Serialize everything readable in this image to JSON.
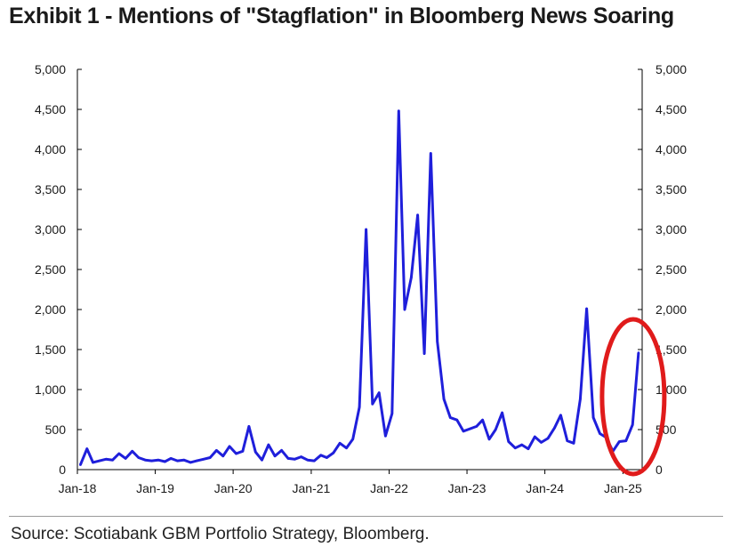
{
  "title": "Exhibit 1 - Mentions of \"Stagflation\" in Bloomberg News Soaring",
  "source": "Source: Scotiabank GBM Portfolio Strategy, Bloomberg.",
  "colors": {
    "series": "#1f1fdb",
    "highlight": "#e01b1b",
    "axis": "#000000"
  },
  "chart_data": {
    "type": "line",
    "title": "Exhibit 1 - Mentions of \"Stagflation\" in Bloomberg News Soaring",
    "xlabel": "",
    "ylabel": "",
    "ylim": [
      0,
      5000
    ],
    "y_ticks": [
      "0",
      "500",
      "1,000",
      "1,500",
      "2,000",
      "2,500",
      "3,000",
      "3,500",
      "4,000",
      "4,500",
      "5,000"
    ],
    "x_tick_labels": [
      "Jan-18",
      "Jan-19",
      "Jan-20",
      "Jan-21",
      "Jan-22",
      "Jan-23",
      "Jan-24",
      "Jan-25"
    ],
    "x_range": [
      "2018-01",
      "2025-04"
    ],
    "secondary_axis": "right (same scale)",
    "grid": false,
    "legend": "none",
    "annotation": "red ellipse around latest spike",
    "series": [
      {
        "x": [
          "2018-01",
          "2018-02",
          "2018-03",
          "2018-04",
          "2018-05",
          "2018-06",
          "2018-07",
          "2018-08",
          "2018-09",
          "2018-10",
          "2018-11",
          "2018-12",
          "2019-01",
          "2019-02",
          "2019-03",
          "2019-04",
          "2019-05",
          "2019-06",
          "2019-07",
          "2019-08",
          "2019-09",
          "2019-10",
          "2019-11",
          "2019-12",
          "2020-01",
          "2020-02",
          "2020-03",
          "2020-04",
          "2020-05",
          "2020-06",
          "2020-07",
          "2020-08",
          "2020-09",
          "2020-10",
          "2020-11",
          "2020-12",
          "2021-01",
          "2021-02",
          "2021-03",
          "2021-04",
          "2021-05",
          "2021-06",
          "2021-07",
          "2021-08",
          "2021-09",
          "2021-10",
          "2021-11",
          "2021-12",
          "2022-01",
          "2022-02",
          "2022-03",
          "2022-04",
          "2022-05",
          "2022-06",
          "2022-07",
          "2022-08",
          "2022-09",
          "2022-10",
          "2022-11",
          "2022-12",
          "2023-01",
          "2023-02",
          "2023-03",
          "2023-04",
          "2023-05",
          "2023-06",
          "2023-07",
          "2023-08",
          "2023-09",
          "2023-10",
          "2023-11",
          "2023-12",
          "2024-01",
          "2024-02",
          "2024-03",
          "2024-04",
          "2024-05",
          "2024-06",
          "2024-07",
          "2024-08",
          "2024-09",
          "2024-10",
          "2024-11",
          "2024-12",
          "2025-01",
          "2025-02",
          "2025-03"
        ],
        "values": [
          60,
          260,
          90,
          110,
          130,
          120,
          200,
          140,
          230,
          150,
          120,
          110,
          120,
          100,
          140,
          110,
          120,
          90,
          110,
          130,
          150,
          240,
          170,
          290,
          200,
          230,
          540,
          220,
          120,
          310,
          170,
          240,
          140,
          130,
          160,
          120,
          110,
          180,
          150,
          210,
          330,
          270,
          380,
          780,
          3000,
          820,
          960,
          420,
          700,
          4480,
          2000,
          2400,
          3180,
          1450,
          3950,
          1600,
          880,
          650,
          620,
          480,
          510,
          540,
          620,
          380,
          500,
          710,
          350,
          270,
          310,
          260,
          410,
          340,
          390,
          520,
          680,
          360,
          330,
          880,
          2010,
          650,
          450,
          400,
          230,
          350,
          360,
          560,
          1460
        ]
      }
    ]
  }
}
